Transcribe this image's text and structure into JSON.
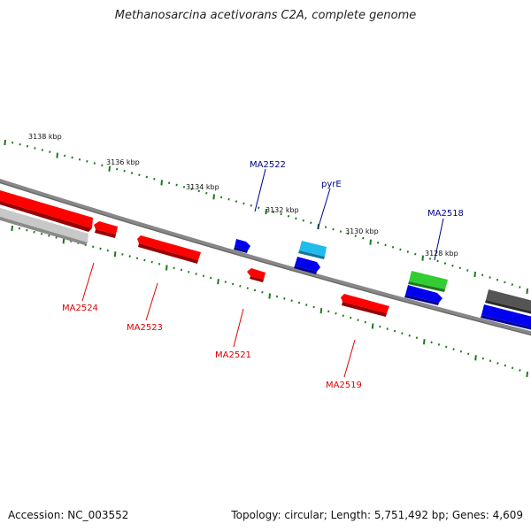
{
  "title": "Methanosarcina acetivorans C2A, complete genome",
  "footer": {
    "accession": "Accession: NC_003552",
    "summary": "Topology: circular; Length: 5,751,492 bp; Genes: 4,609"
  },
  "scale_labels": [
    "3138 kbp",
    "3136 kbp",
    "3134 kbp",
    "3132 kbp",
    "3130 kbp",
    "3128 kbp"
  ],
  "gene_labels": [
    {
      "name": "MA2522",
      "strand": "forward",
      "color": "#00008b"
    },
    {
      "name": "pyrE",
      "strand": "forward",
      "color": "#00008b"
    },
    {
      "name": "MA2518",
      "strand": "forward",
      "color": "#00008b"
    },
    {
      "name": "MA2524",
      "strand": "reverse",
      "color": "#dd0000"
    },
    {
      "name": "MA2523",
      "strand": "reverse",
      "color": "#dd0000"
    },
    {
      "name": "MA2521",
      "strand": "reverse",
      "color": "#dd0000"
    },
    {
      "name": "MA2519",
      "strand": "reverse",
      "color": "#dd0000"
    }
  ],
  "colors": {
    "backbone": "#808080",
    "ticks": "#1a7a1a",
    "forward_label": "#00008b",
    "reverse_label": "#dd0000",
    "gene_red": "#ff0000",
    "gene_blue": "#0000ee",
    "gene_cyan": "#22bbee",
    "gene_green": "#33cc33",
    "gene_gray": "#555555",
    "gene_lightgray": "#c8c8c8"
  }
}
